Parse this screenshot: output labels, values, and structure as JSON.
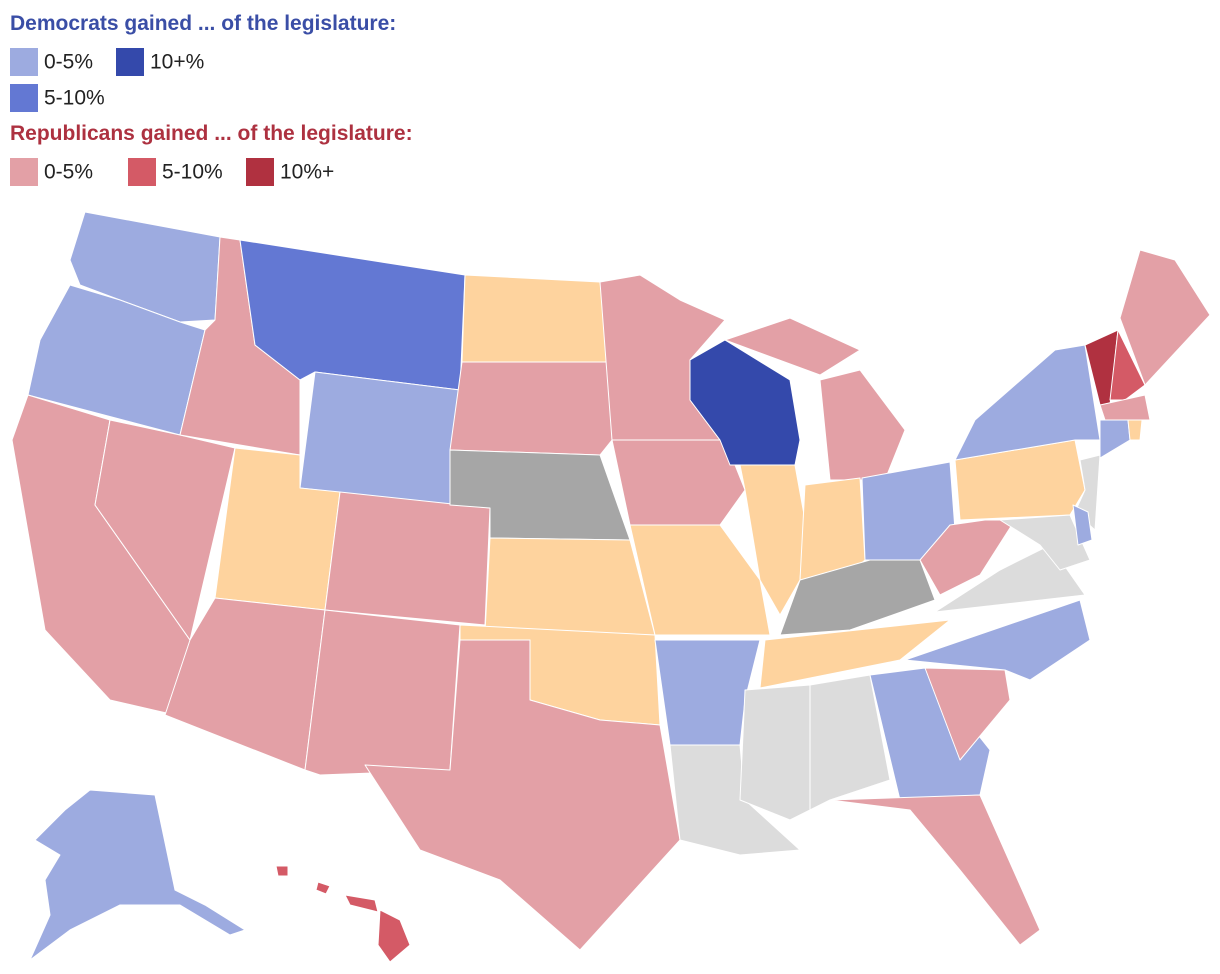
{
  "legend": [
    {
      "title": "Democrats gained ... of the legislature:",
      "color": "#3a4ea6",
      "items": [
        {
          "label": "0-5%",
          "color": "#9dabe0"
        },
        {
          "label": "5-10%",
          "color": "#6378d3"
        },
        {
          "label": "10+%",
          "color": "#3449ab"
        }
      ]
    },
    {
      "title": "Republicans gained ... of the legislature:",
      "color": "#ad3140",
      "items": [
        {
          "label": "0-5%",
          "color": "#e3a0a6"
        },
        {
          "label": "5-10%",
          "color": "#d45a66"
        },
        {
          "label": "10%+",
          "color": "#b03140"
        }
      ]
    }
  ]
}
